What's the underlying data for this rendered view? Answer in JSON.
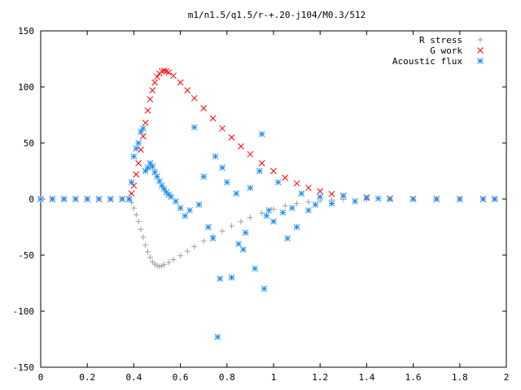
{
  "chart_data": {
    "type": "scatter",
    "title": "m1/n1.5/q1.5/r-+.20-j104/M0.3/512",
    "xlabel": "",
    "ylabel": "",
    "xlim": [
      0,
      2
    ],
    "ylim": [
      -150,
      150
    ],
    "x_ticks": [
      0,
      0.2,
      0.4,
      0.6,
      0.8,
      1,
      1.2,
      1.4,
      1.6,
      1.8,
      2
    ],
    "x_tick_labels": [
      "0",
      "0.2",
      "0.4",
      "0.6",
      "0.8",
      "1",
      "1.2",
      "1.4",
      "1.6",
      "1.8",
      "2"
    ],
    "y_ticks": [
      -150,
      -100,
      -50,
      0,
      50,
      100,
      150
    ],
    "y_tick_labels": [
      "-150",
      "-100",
      "-50",
      "0",
      "50",
      "100",
      "150"
    ],
    "grid": false,
    "legend_position": "top-right",
    "series": [
      {
        "name": "R stress",
        "marker": "plus",
        "color": "#a0a0a0",
        "points": [
          [
            0.0,
            0
          ],
          [
            0.05,
            0
          ],
          [
            0.1,
            0
          ],
          [
            0.15,
            0
          ],
          [
            0.2,
            0
          ],
          [
            0.25,
            0
          ],
          [
            0.3,
            0
          ],
          [
            0.35,
            0
          ],
          [
            0.38,
            0
          ],
          [
            0.39,
            -3
          ],
          [
            0.4,
            -8
          ],
          [
            0.41,
            -14
          ],
          [
            0.42,
            -20
          ],
          [
            0.43,
            -27
          ],
          [
            0.44,
            -34
          ],
          [
            0.45,
            -41
          ],
          [
            0.46,
            -47
          ],
          [
            0.47,
            -52
          ],
          [
            0.48,
            -56
          ],
          [
            0.49,
            -58
          ],
          [
            0.5,
            -59.5
          ],
          [
            0.51,
            -60
          ],
          [
            0.52,
            -59.5
          ],
          [
            0.53,
            -58.5
          ],
          [
            0.55,
            -56.5
          ],
          [
            0.57,
            -54
          ],
          [
            0.6,
            -50.5
          ],
          [
            0.63,
            -46.5
          ],
          [
            0.66,
            -42.5
          ],
          [
            0.7,
            -37.5
          ],
          [
            0.74,
            -33
          ],
          [
            0.78,
            -28.5
          ],
          [
            0.82,
            -24
          ],
          [
            0.86,
            -20
          ],
          [
            0.9,
            -16.5
          ],
          [
            0.95,
            -12.5
          ],
          [
            1.0,
            -9
          ],
          [
            1.05,
            -6
          ],
          [
            1.1,
            -4
          ],
          [
            1.15,
            -2.5
          ],
          [
            1.2,
            -1.5
          ],
          [
            1.25,
            -0.8
          ],
          [
            1.3,
            -0.4
          ],
          [
            1.4,
            -0.2
          ],
          [
            1.5,
            0
          ],
          [
            1.6,
            0
          ],
          [
            1.7,
            0
          ],
          [
            1.8,
            0
          ],
          [
            1.9,
            0
          ],
          [
            1.95,
            0
          ]
        ]
      },
      {
        "name": "G work",
        "marker": "cross",
        "color": "#ff0000",
        "points": [
          [
            0.0,
            0
          ],
          [
            0.05,
            0
          ],
          [
            0.1,
            0
          ],
          [
            0.15,
            0
          ],
          [
            0.2,
            0
          ],
          [
            0.25,
            0
          ],
          [
            0.3,
            0
          ],
          [
            0.35,
            0
          ],
          [
            0.38,
            0
          ],
          [
            0.39,
            5
          ],
          [
            0.4,
            12
          ],
          [
            0.41,
            22
          ],
          [
            0.42,
            32
          ],
          [
            0.43,
            44
          ],
          [
            0.44,
            56
          ],
          [
            0.45,
            68
          ],
          [
            0.46,
            79
          ],
          [
            0.47,
            89
          ],
          [
            0.48,
            97
          ],
          [
            0.49,
            104
          ],
          [
            0.5,
            109
          ],
          [
            0.51,
            112
          ],
          [
            0.52,
            114
          ],
          [
            0.53,
            114.5
          ],
          [
            0.54,
            114
          ],
          [
            0.55,
            113
          ],
          [
            0.57,
            110
          ],
          [
            0.6,
            104
          ],
          [
            0.63,
            97
          ],
          [
            0.66,
            90
          ],
          [
            0.7,
            81
          ],
          [
            0.74,
            72
          ],
          [
            0.78,
            63
          ],
          [
            0.82,
            55
          ],
          [
            0.86,
            47
          ],
          [
            0.9,
            40
          ],
          [
            0.95,
            32
          ],
          [
            1.0,
            25
          ],
          [
            1.05,
            19
          ],
          [
            1.1,
            14
          ],
          [
            1.15,
            10
          ],
          [
            1.2,
            7
          ],
          [
            1.25,
            4.5
          ],
          [
            1.3,
            3
          ],
          [
            1.4,
            1.5
          ],
          [
            1.5,
            0.5
          ],
          [
            1.6,
            0.2
          ],
          [
            1.7,
            0
          ],
          [
            1.8,
            0
          ],
          [
            1.9,
            0
          ],
          [
            1.95,
            0
          ]
        ]
      },
      {
        "name": "Acoustic flux",
        "marker": "star",
        "color": "#1f8fef",
        "points": [
          [
            0.0,
            0
          ],
          [
            0.05,
            0
          ],
          [
            0.1,
            0
          ],
          [
            0.15,
            0
          ],
          [
            0.2,
            0
          ],
          [
            0.25,
            0
          ],
          [
            0.3,
            0
          ],
          [
            0.35,
            0
          ],
          [
            0.38,
            0
          ],
          [
            0.39,
            15
          ],
          [
            0.4,
            38
          ],
          [
            0.41,
            45
          ],
          [
            0.42,
            50
          ],
          [
            0.43,
            60
          ],
          [
            0.44,
            63
          ],
          [
            0.45,
            25
          ],
          [
            0.46,
            28
          ],
          [
            0.47,
            32
          ],
          [
            0.48,
            29
          ],
          [
            0.49,
            24
          ],
          [
            0.5,
            20
          ],
          [
            0.51,
            16
          ],
          [
            0.52,
            12
          ],
          [
            0.53,
            9
          ],
          [
            0.54,
            6
          ],
          [
            0.55,
            4
          ],
          [
            0.56,
            2
          ],
          [
            0.58,
            -2
          ],
          [
            0.6,
            -8
          ],
          [
            0.62,
            -15
          ],
          [
            0.64,
            -10
          ],
          [
            0.66,
            64
          ],
          [
            0.68,
            -5
          ],
          [
            0.7,
            20
          ],
          [
            0.72,
            -25
          ],
          [
            0.74,
            -35
          ],
          [
            0.75,
            38
          ],
          [
            0.76,
            -123
          ],
          [
            0.77,
            -71
          ],
          [
            0.78,
            28
          ],
          [
            0.8,
            15
          ],
          [
            0.82,
            -70
          ],
          [
            0.84,
            5
          ],
          [
            0.85,
            -40
          ],
          [
            0.87,
            -45
          ],
          [
            0.88,
            -30
          ],
          [
            0.9,
            10
          ],
          [
            0.92,
            -62
          ],
          [
            0.94,
            25
          ],
          [
            0.95,
            58
          ],
          [
            0.96,
            -80
          ],
          [
            0.97,
            -15
          ],
          [
            0.98,
            -10
          ],
          [
            1.0,
            -20
          ],
          [
            1.02,
            15
          ],
          [
            1.04,
            -12
          ],
          [
            1.06,
            -35
          ],
          [
            1.08,
            -8
          ],
          [
            1.1,
            -25
          ],
          [
            1.12,
            5
          ],
          [
            1.15,
            -10
          ],
          [
            1.18,
            -5
          ],
          [
            1.2,
            2
          ],
          [
            1.25,
            -4
          ],
          [
            1.3,
            3
          ],
          [
            1.35,
            -2
          ],
          [
            1.4,
            1
          ],
          [
            1.45,
            0.5
          ],
          [
            1.5,
            0
          ],
          [
            1.6,
            0
          ],
          [
            1.7,
            0
          ],
          [
            1.8,
            0
          ],
          [
            1.9,
            0
          ],
          [
            1.95,
            0
          ]
        ]
      }
    ]
  }
}
